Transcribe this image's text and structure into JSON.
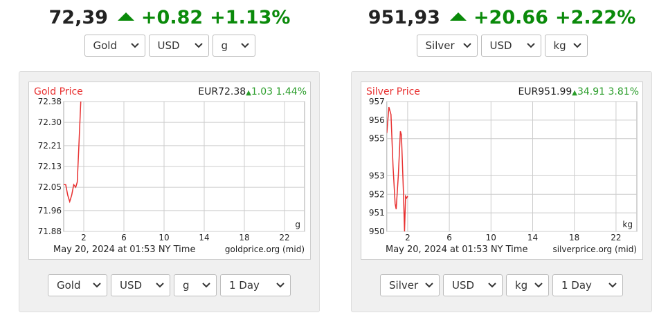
{
  "widgets": [
    {
      "price": "72,39",
      "change": "+0.82",
      "change_pct": "+1.13%",
      "selects": [
        "Gold",
        "USD",
        "g"
      ],
      "chart": {
        "type": "line",
        "title": "Gold Price",
        "quote": "EUR72.38",
        "quote_change": "1.03",
        "quote_pct": "1.44%",
        "unit": "g",
        "footer": "May 20, 2024 at 01:53 NY Time",
        "source": "goldprice.org (mid)",
        "color": "#e83030",
        "xlim": [
          0,
          24
        ],
        "xticks": [
          2,
          6,
          10,
          14,
          18,
          22
        ],
        "ylim": [
          71.88,
          72.38
        ],
        "yticks": [
          71.88,
          71.96,
          72.05,
          72.13,
          72.21,
          {
            "value": 72.3,
            "label": "72.30"
          },
          72.38
        ],
        "x": [
          0,
          0.2,
          0.4,
          0.6,
          0.8,
          1.0,
          1.2,
          1.35,
          1.5,
          1.7
        ],
        "values": [
          72.06,
          72.06,
          72.02,
          71.995,
          72.02,
          72.06,
          72.05,
          72.07,
          72.2,
          72.38
        ]
      },
      "bottom_selects": [
        "Gold",
        "USD",
        "g",
        "1 Day"
      ]
    },
    {
      "price": "951,93",
      "change": "+20.66",
      "change_pct": "+2.22%",
      "selects": [
        "Silver",
        "USD",
        "kg"
      ],
      "chart": {
        "type": "line",
        "title": "Silver Price",
        "quote": "EUR951.99",
        "quote_change": "34.91",
        "quote_pct": "3.81%",
        "unit": "kg",
        "footer": "May 20, 2024 at 01:53 NY Time",
        "source": "silverprice.org (mid)",
        "color": "#e83030",
        "xlim": [
          0,
          24
        ],
        "xticks": [
          2,
          6,
          10,
          14,
          18,
          22
        ],
        "ylim": [
          950,
          957
        ],
        "yticks": [
          950,
          951,
          952,
          953,
          955,
          956,
          957
        ],
        "x": [
          0,
          0.1,
          0.2,
          0.4,
          0.6,
          0.8,
          0.9,
          1.1,
          1.3,
          1.4,
          1.6,
          1.7,
          1.8,
          1.9,
          2.0
        ],
        "values": [
          955.3,
          956,
          956.7,
          956.3,
          953.5,
          951.5,
          951.2,
          953,
          955.4,
          955.2,
          952,
          950,
          951.9,
          951.8,
          951.9
        ]
      },
      "bottom_selects": [
        "Silver",
        "USD",
        "kg",
        "1 Day"
      ]
    }
  ]
}
